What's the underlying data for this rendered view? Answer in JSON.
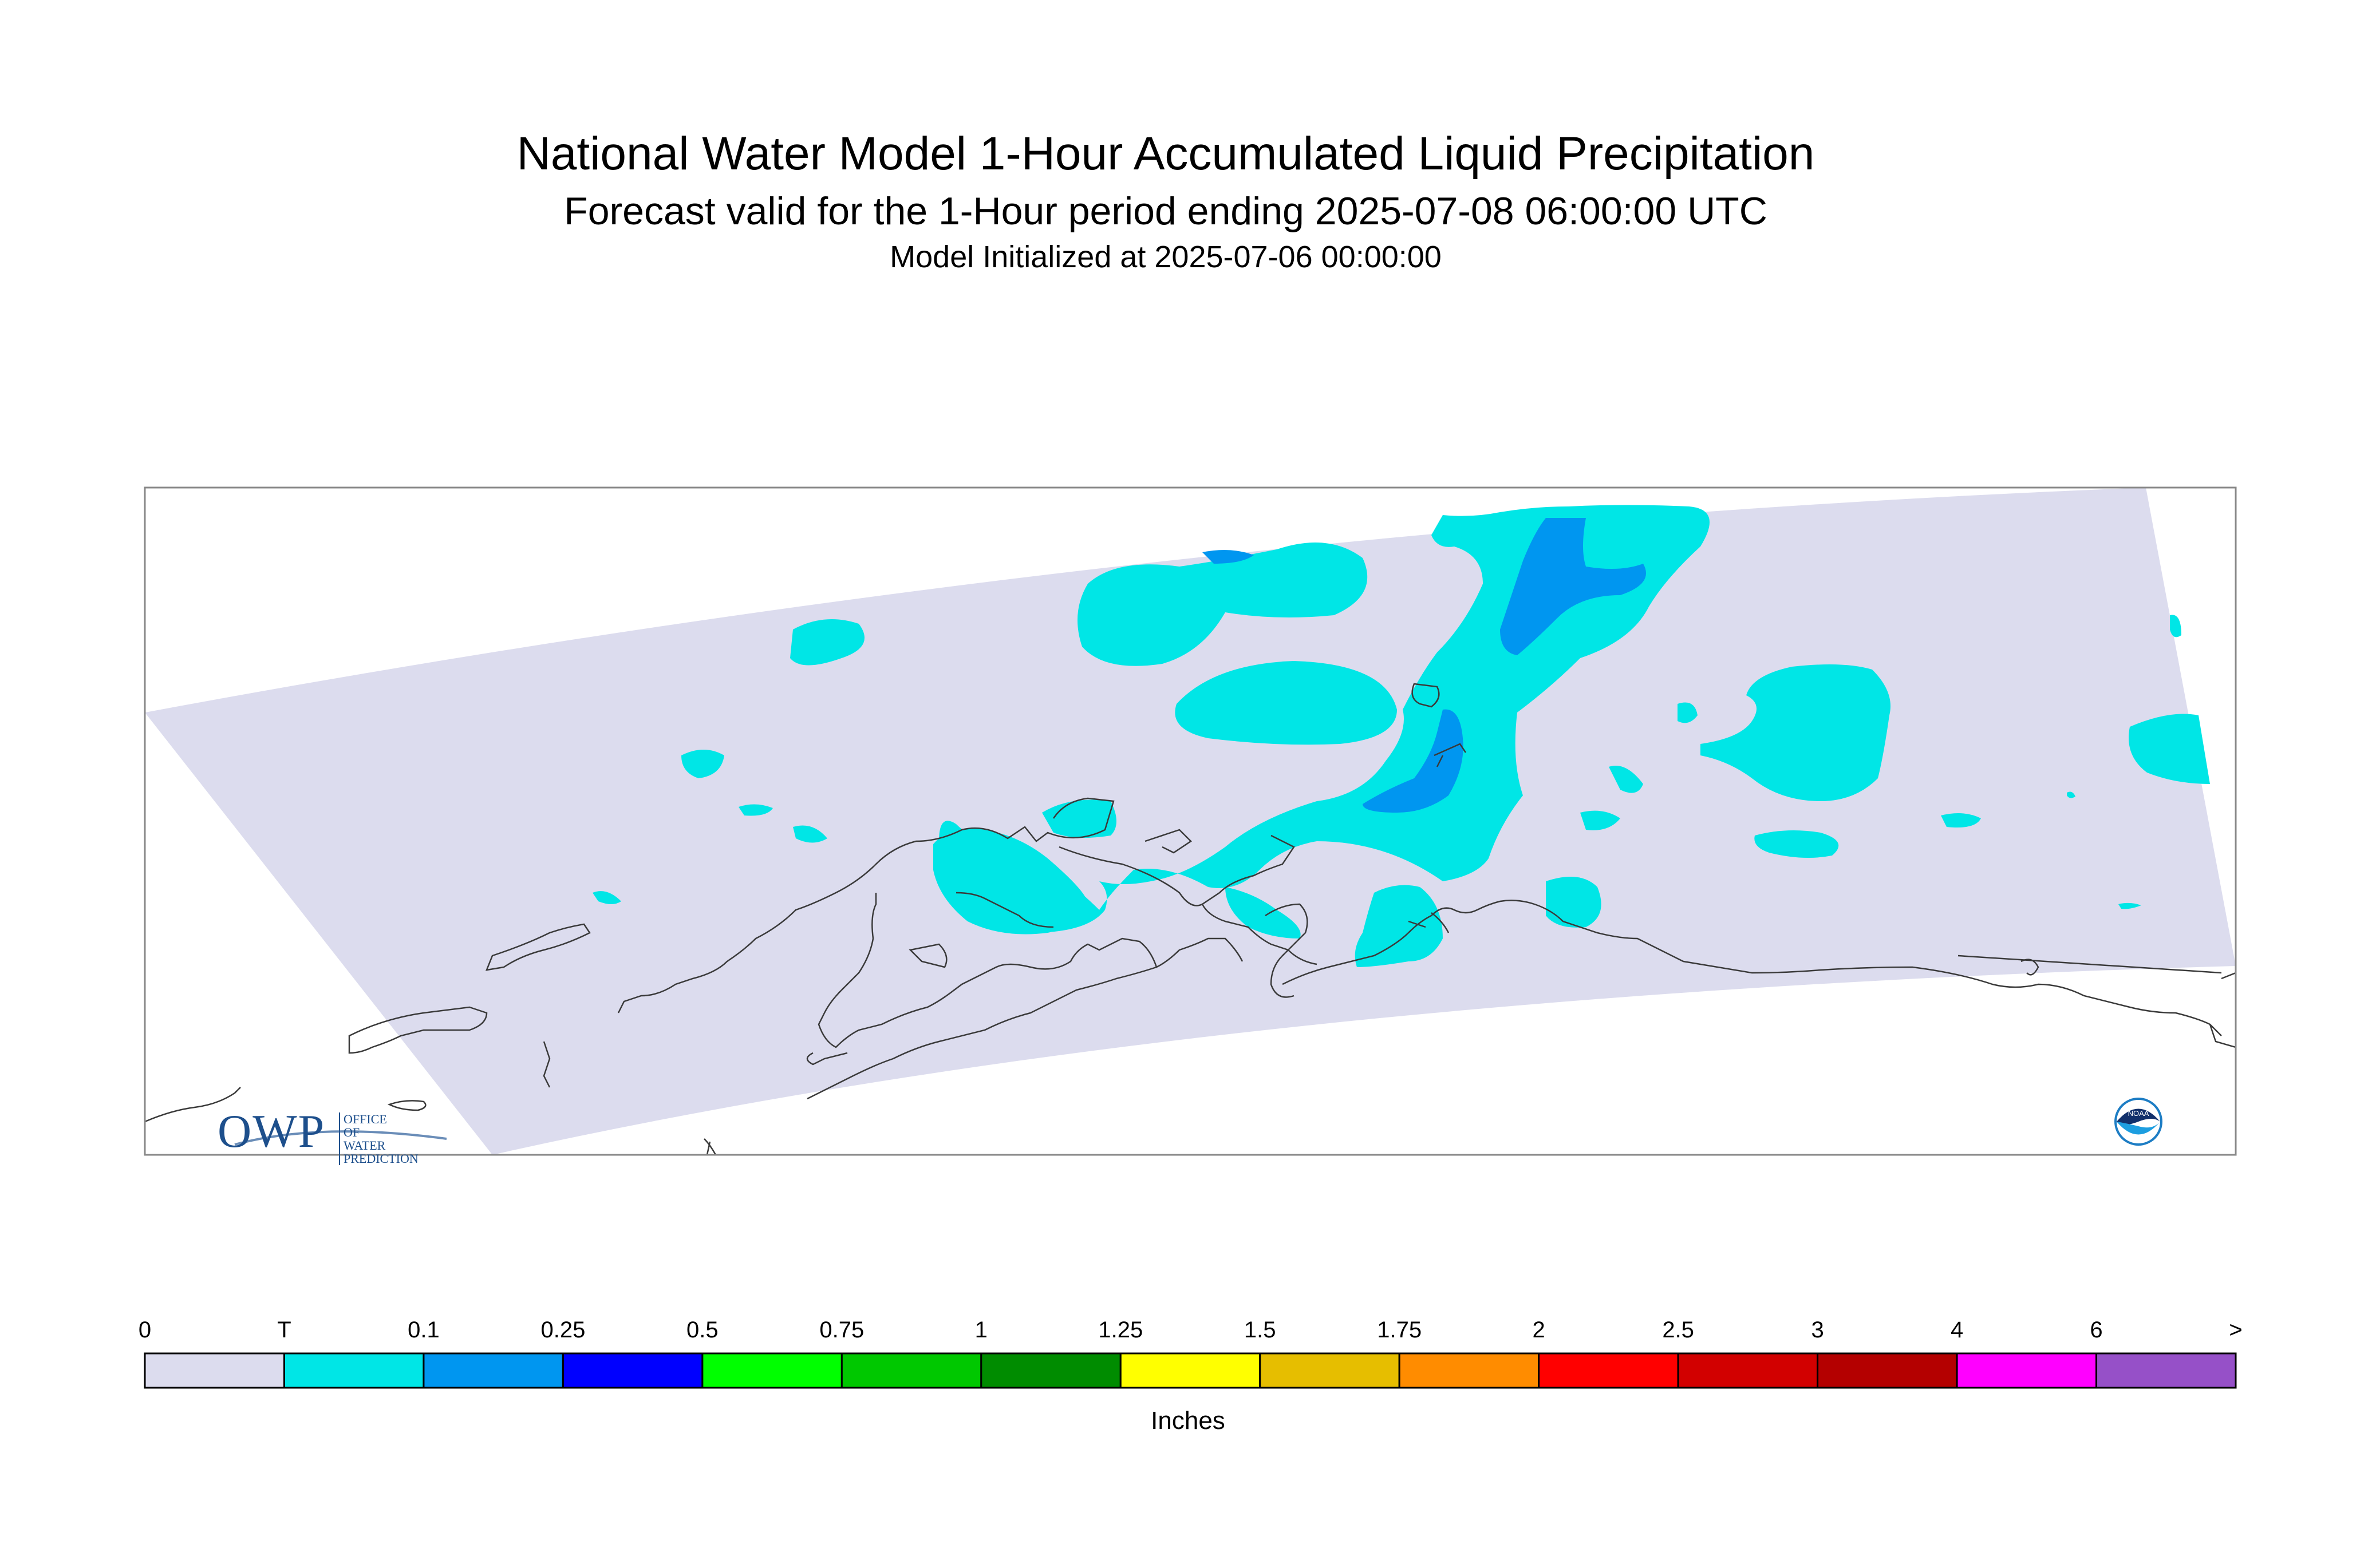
{
  "header": {
    "title": "National Water Model 1-Hour Accumulated Liquid Precipitation",
    "subtitle": "Forecast valid for the 1-Hour period ending 2025-07-08 06:00:00 UTC",
    "init_line": "Model Initialized at 2025-07-06 00:00:00"
  },
  "map": {
    "domain_fill_color": "#dcdcee",
    "coastline_color": "#3a3a3a",
    "precip_colors": {
      "trace": "#00e6e6",
      "light": "#0096f0"
    },
    "region": "Alaska"
  },
  "legend": {
    "units": "Inches",
    "ticks": [
      "0",
      "T",
      "0.1",
      "0.25",
      "0.5",
      "0.75",
      "1",
      "1.25",
      "1.5",
      "1.75",
      "2",
      "2.5",
      "3",
      "4",
      "6",
      ">"
    ],
    "colors": [
      "#dcdcee",
      "#00e6e6",
      "#0096f0",
      "#0000ff",
      "#00ff00",
      "#00c800",
      "#008c00",
      "#ffff00",
      "#e6be00",
      "#ff8c00",
      "#ff0000",
      "#d20000",
      "#b40000",
      "#ff00ff",
      "#9650c8"
    ]
  },
  "logos": {
    "owp_mark": "OWP",
    "owp_name": "OFFICE OF WATER PREDICTION",
    "noaa": "NOAA"
  }
}
